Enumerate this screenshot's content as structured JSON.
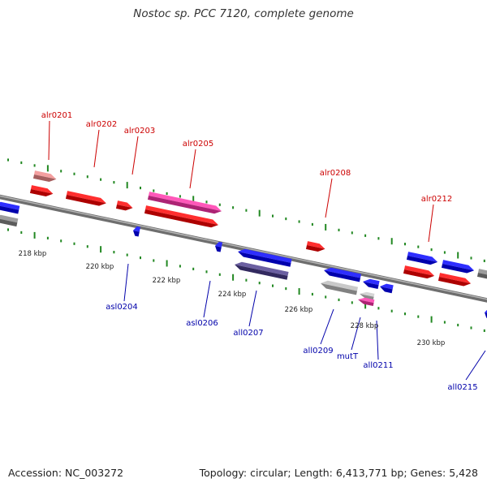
{
  "title": "Nostoc sp. PCC 7120, complete genome",
  "footer": {
    "accession": "Accession: NC_003272",
    "summary": "Topology: circular; Length: 6,413,771 bp; Genes: 5,428"
  },
  "colors": {
    "forward_gene": "#ff0000",
    "reverse_gene": "#0000ff",
    "rna_gene": "#ff33aa",
    "forward_label": "#cc0000",
    "reverse_label": "#0000aa",
    "tick": "#228822",
    "backbone": "#777777"
  },
  "kbp_labels": [
    "218 kbp",
    "220 kbp",
    "222 kbp",
    "224 kbp",
    "226 kbp",
    "228 kbp",
    "230 kbp"
  ],
  "forward_labels": [
    "alr0201",
    "alr0202",
    "alr0203",
    "alr0205",
    "alr0208",
    "alr0212"
  ],
  "reverse_labels": [
    "asl0204",
    "asl0206",
    "all0207",
    "all0209",
    "mutT",
    "all0211",
    "all0215"
  ]
}
